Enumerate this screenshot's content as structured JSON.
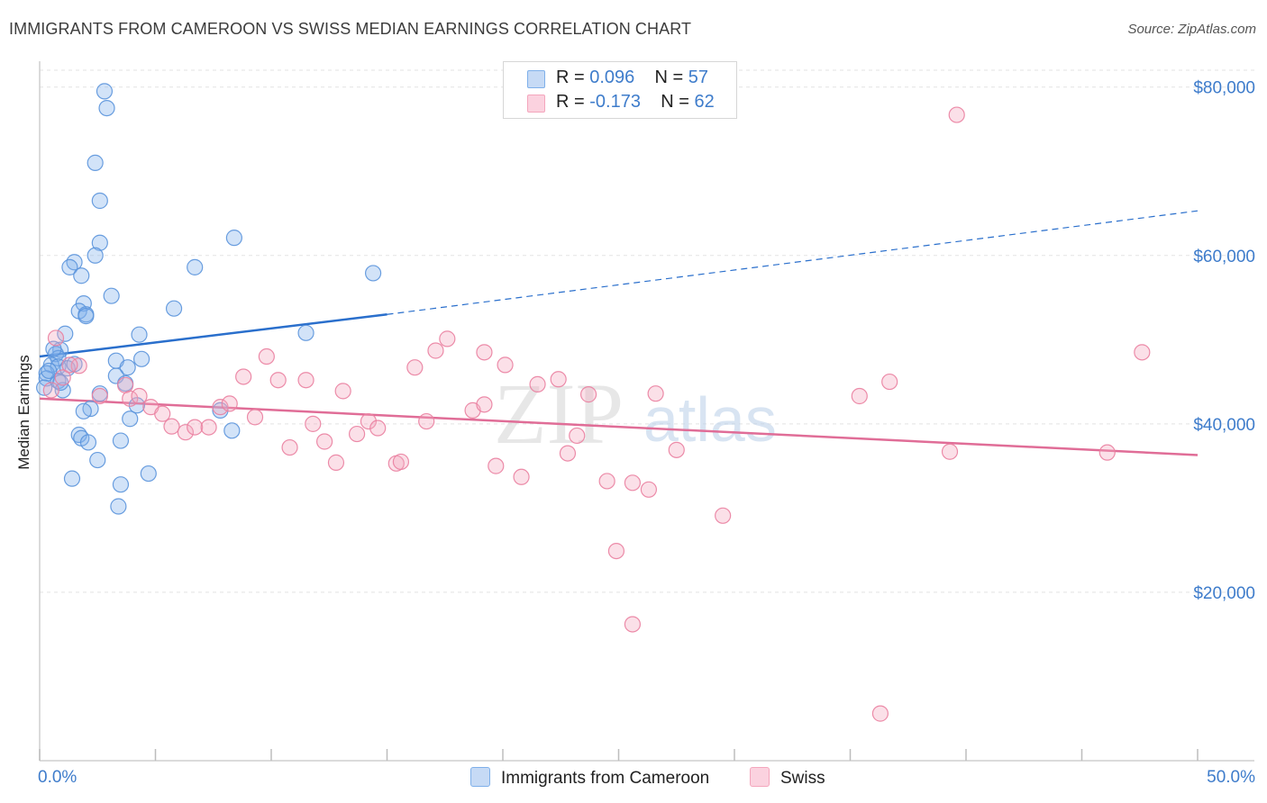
{
  "title": "IMMIGRANTS FROM CAMEROON VS SWISS MEDIAN EARNINGS CORRELATION CHART",
  "source": "Source: ZipAtlas.com",
  "watermark": {
    "zip": "ZIP",
    "atlas": "atlas"
  },
  "legend": {
    "rows": [
      {
        "r_label": "R =",
        "r_value": "0.096",
        "n_label": "N =",
        "n_value": "57",
        "color": "#a9c8f0"
      },
      {
        "r_label": "R =",
        "r_value": "-0.173",
        "n_label": "N =",
        "n_value": "62",
        "color": "#f7b8cb"
      }
    ]
  },
  "bottom_legend": [
    {
      "label": "Immigrants from Cameroon",
      "color": "#a9c8f0"
    },
    {
      "label": "Swiss",
      "color": "#f7b8cb"
    }
  ],
  "chart_data": {
    "type": "scatter",
    "title": "IMMIGRANTS FROM CAMEROON VS SWISS MEDIAN EARNINGS CORRELATION CHART",
    "xlabel": "",
    "ylabel": "Median Earnings",
    "xlim": [
      0,
      50
    ],
    "ylim": [
      0,
      82000
    ],
    "x_tick_labels": {
      "left": "0.0%",
      "right": "50.0%"
    },
    "y_ticks": [
      {
        "value": 20000,
        "label": "$20,000"
      },
      {
        "value": 40000,
        "label": "$40,000"
      },
      {
        "value": 60000,
        "label": "$60,000"
      },
      {
        "value": 80000,
        "label": "$80,000"
      }
    ],
    "grid": true,
    "series": [
      {
        "name": "Immigrants from Cameroon",
        "color": "#7fb0ea",
        "stroke": "#5a93dc",
        "trend": {
          "x0": 0,
          "y0": 48000,
          "x1": 15,
          "y1": 53000,
          "x_dash_end": 50,
          "y_dash_end": 65300,
          "color": "#2a6fcc"
        },
        "points": [
          [
            2.8,
            79500
          ],
          [
            2.9,
            77500
          ],
          [
            2.4,
            71000
          ],
          [
            2.6,
            66500
          ],
          [
            2.6,
            61500
          ],
          [
            2.4,
            60000
          ],
          [
            1.5,
            59200
          ],
          [
            1.3,
            58600
          ],
          [
            1.8,
            57600
          ],
          [
            3.1,
            55200
          ],
          [
            1.9,
            54300
          ],
          [
            1.7,
            53400
          ],
          [
            2.0,
            53000
          ],
          [
            2.0,
            52800
          ],
          [
            1.1,
            50700
          ],
          [
            0.9,
            48800
          ],
          [
            0.7,
            48300
          ],
          [
            0.8,
            47800
          ],
          [
            0.5,
            47000
          ],
          [
            0.8,
            46800
          ],
          [
            1.2,
            46600
          ],
          [
            0.3,
            46000
          ],
          [
            0.3,
            45400
          ],
          [
            0.8,
            45100
          ],
          [
            0.2,
            44300
          ],
          [
            1.0,
            44000
          ],
          [
            3.3,
            47500
          ],
          [
            3.8,
            46700
          ],
          [
            3.3,
            45700
          ],
          [
            3.7,
            44800
          ],
          [
            4.2,
            42200
          ],
          [
            2.2,
            41800
          ],
          [
            3.9,
            40600
          ],
          [
            1.7,
            38700
          ],
          [
            1.8,
            38300
          ],
          [
            2.1,
            37800
          ],
          [
            3.5,
            38000
          ],
          [
            2.5,
            35700
          ],
          [
            4.7,
            34100
          ],
          [
            1.4,
            33500
          ],
          [
            3.5,
            32800
          ],
          [
            3.4,
            30200
          ],
          [
            8.4,
            62100
          ],
          [
            6.7,
            58600
          ],
          [
            5.8,
            53700
          ],
          [
            4.3,
            50600
          ],
          [
            4.4,
            47700
          ],
          [
            7.8,
            41600
          ],
          [
            8.3,
            39200
          ],
          [
            11.5,
            50800
          ],
          [
            14.4,
            57900
          ],
          [
            0.6,
            48900
          ],
          [
            0.4,
            46300
          ],
          [
            1.5,
            47100
          ],
          [
            2.6,
            43600
          ],
          [
            0.9,
            44900
          ],
          [
            1.9,
            41500
          ]
        ]
      },
      {
        "name": "Swiss",
        "color": "#f4a6bd",
        "stroke": "#ea7fa0",
        "trend": {
          "x0": 0,
          "y0": 43000,
          "x1": 50,
          "y1": 36300,
          "color": "#e06d97"
        },
        "points": [
          [
            39.6,
            76700
          ],
          [
            47.6,
            48500
          ],
          [
            0.7,
            50200
          ],
          [
            1.0,
            45500
          ],
          [
            1.7,
            46900
          ],
          [
            2.6,
            43300
          ],
          [
            3.7,
            44600
          ],
          [
            3.9,
            43000
          ],
          [
            4.3,
            43300
          ],
          [
            4.8,
            42000
          ],
          [
            5.3,
            41200
          ],
          [
            5.7,
            39700
          ],
          [
            6.3,
            39000
          ],
          [
            6.7,
            39600
          ],
          [
            7.3,
            39600
          ],
          [
            7.8,
            42000
          ],
          [
            8.2,
            42400
          ],
          [
            8.8,
            45600
          ],
          [
            9.3,
            40800
          ],
          [
            9.8,
            48000
          ],
          [
            10.3,
            45200
          ],
          [
            10.8,
            37200
          ],
          [
            11.5,
            45200
          ],
          [
            11.8,
            40000
          ],
          [
            12.3,
            37900
          ],
          [
            12.8,
            35400
          ],
          [
            13.1,
            43900
          ],
          [
            13.7,
            38800
          ],
          [
            14.2,
            40300
          ],
          [
            14.6,
            39500
          ],
          [
            15.4,
            35300
          ],
          [
            15.6,
            35500
          ],
          [
            16.2,
            46700
          ],
          [
            16.7,
            40300
          ],
          [
            17.1,
            48700
          ],
          [
            17.6,
            50100
          ],
          [
            18.7,
            41600
          ],
          [
            19.2,
            42300
          ],
          [
            19.2,
            48500
          ],
          [
            19.7,
            35000
          ],
          [
            20.1,
            47000
          ],
          [
            20.8,
            33700
          ],
          [
            21.5,
            44700
          ],
          [
            22.4,
            45300
          ],
          [
            22.8,
            36500
          ],
          [
            23.2,
            38600
          ],
          [
            23.7,
            43500
          ],
          [
            24.5,
            33200
          ],
          [
            24.9,
            24900
          ],
          [
            25.6,
            33000
          ],
          [
            25.6,
            16200
          ],
          [
            26.3,
            32200
          ],
          [
            26.6,
            43600
          ],
          [
            27.5,
            36900
          ],
          [
            29.5,
            29100
          ],
          [
            35.4,
            43300
          ],
          [
            36.3,
            5600
          ],
          [
            36.7,
            45000
          ],
          [
            39.3,
            36700
          ],
          [
            46.1,
            36600
          ],
          [
            0.5,
            44000
          ],
          [
            1.3,
            47000
          ]
        ]
      }
    ]
  }
}
